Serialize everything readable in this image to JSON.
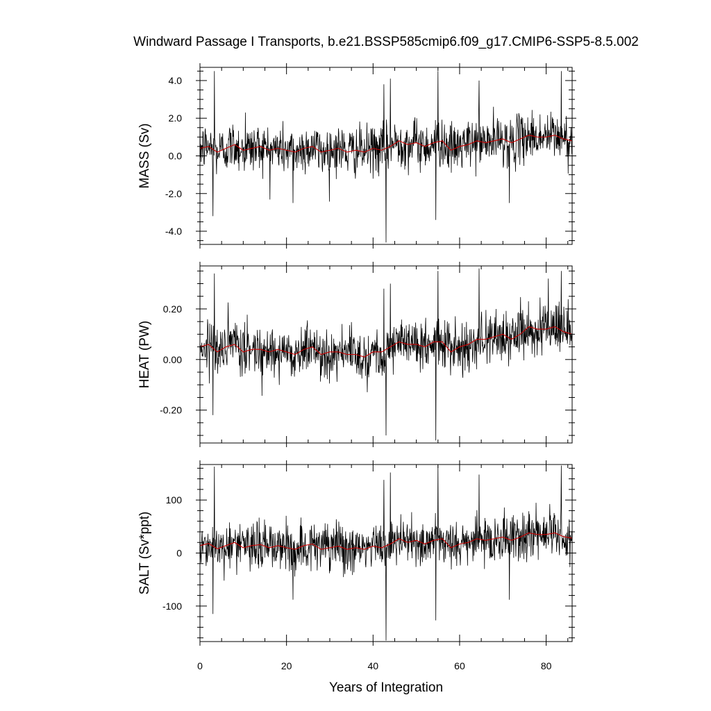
{
  "chart_data": {
    "type": "line",
    "title": "Windward Passage I Transports, b.e21.BSSP585cmip6.f09_g17.CMIP6-SSP5-8.5.002",
    "xlabel": "Years of Integration",
    "xlim": [
      0,
      86
    ],
    "x_ticks": [
      0,
      20,
      40,
      60,
      80
    ],
    "x_tick_labels": [
      "0",
      "20",
      "40",
      "60",
      "80"
    ],
    "x_monthly_start": 0,
    "x_monthly_step": 0.08333,
    "line_colors": {
      "raw": "#000000",
      "smoothed": "#cc0000"
    },
    "panels": [
      {
        "ylabel": "MASS (Sv)",
        "ylim": [
          -4.7,
          4.7
        ],
        "y_ticks": [
          -4,
          -2,
          0,
          2,
          4
        ],
        "y_tick_labels": [
          "-4.0",
          "-2.0",
          "0.0",
          "2.0",
          "4.0"
        ],
        "y_minor_step": 0.5,
        "series": [
          {
            "kind": "raw",
            "mean": 0.3,
            "std": 0.65
          },
          {
            "kind": "smoothed",
            "values": [
              [
                0,
                0.4
              ],
              [
                2,
                0.5
              ],
              [
                4,
                0.2
              ],
              [
                6,
                0.4
              ],
              [
                8,
                0.6
              ],
              [
                10,
                0.3
              ],
              [
                12,
                0.4
              ],
              [
                14,
                0.5
              ],
              [
                16,
                0.3
              ],
              [
                18,
                0.4
              ],
              [
                20,
                0.3
              ],
              [
                22,
                0.2
              ],
              [
                24,
                0.4
              ],
              [
                26,
                0.5
              ],
              [
                28,
                0.2
              ],
              [
                30,
                0.3
              ],
              [
                32,
                0.4
              ],
              [
                34,
                0.2
              ],
              [
                36,
                0.3
              ],
              [
                38,
                0.2
              ],
              [
                40,
                0.4
              ],
              [
                42,
                0.3
              ],
              [
                44,
                0.5
              ],
              [
                46,
                0.8
              ],
              [
                48,
                0.6
              ],
              [
                50,
                0.7
              ],
              [
                52,
                0.5
              ],
              [
                54,
                0.7
              ],
              [
                56,
                0.8
              ],
              [
                58,
                0.3
              ],
              [
                60,
                0.5
              ],
              [
                62,
                0.6
              ],
              [
                64,
                0.8
              ],
              [
                66,
                0.7
              ],
              [
                68,
                0.8
              ],
              [
                70,
                0.9
              ],
              [
                72,
                0.7
              ],
              [
                74,
                0.9
              ],
              [
                76,
                1.1
              ],
              [
                78,
                1.0
              ],
              [
                80,
                1.0
              ],
              [
                82,
                1.1
              ],
              [
                84,
                0.9
              ],
              [
                86,
                0.8
              ]
            ]
          }
        ],
        "spikes": [
          [
            3.3,
            4.5
          ],
          [
            3.0,
            -3.2
          ],
          [
            43.0,
            -4.6
          ],
          [
            44.0,
            4.1
          ],
          [
            55.0,
            4.5
          ],
          [
            54.5,
            -3.4
          ],
          [
            64.5,
            4.0
          ],
          [
            83.5,
            4.5
          ],
          [
            21.5,
            -2.5
          ],
          [
            71.5,
            -2.5
          ],
          [
            10.5,
            2.3
          ],
          [
            42.5,
            3.8
          ]
        ]
      },
      {
        "ylabel": "HEAT (PW)",
        "ylim": [
          -0.33,
          0.37
        ],
        "y_ticks": [
          -0.2,
          0,
          0.2
        ],
        "y_tick_labels": [
          "-0.20",
          "0.00",
          "0.20"
        ],
        "y_minor_step": 0.05,
        "series": [
          {
            "kind": "raw",
            "mean": 0.04,
            "std": 0.05
          },
          {
            "kind": "smoothed",
            "values": [
              [
                0,
                0.05
              ],
              [
                2,
                0.06
              ],
              [
                4,
                0.03
              ],
              [
                6,
                0.05
              ],
              [
                8,
                0.06
              ],
              [
                10,
                0.03
              ],
              [
                12,
                0.04
              ],
              [
                14,
                0.04
              ],
              [
                16,
                0.03
              ],
              [
                18,
                0.04
              ],
              [
                20,
                0.03
              ],
              [
                22,
                0.02
              ],
              [
                24,
                0.04
              ],
              [
                26,
                0.05
              ],
              [
                28,
                0.02
              ],
              [
                30,
                0.03
              ],
              [
                32,
                0.03
              ],
              [
                34,
                0.02
              ],
              [
                36,
                0.02
              ],
              [
                38,
                0.01
              ],
              [
                40,
                0.03
              ],
              [
                42,
                0.03
              ],
              [
                44,
                0.05
              ],
              [
                46,
                0.07
              ],
              [
                48,
                0.06
              ],
              [
                50,
                0.06
              ],
              [
                52,
                0.05
              ],
              [
                54,
                0.07
              ],
              [
                56,
                0.07
              ],
              [
                58,
                0.03
              ],
              [
                60,
                0.05
              ],
              [
                62,
                0.06
              ],
              [
                64,
                0.08
              ],
              [
                66,
                0.08
              ],
              [
                68,
                0.09
              ],
              [
                70,
                0.1
              ],
              [
                72,
                0.08
              ],
              [
                74,
                0.1
              ],
              [
                76,
                0.13
              ],
              [
                78,
                0.12
              ],
              [
                80,
                0.12
              ],
              [
                82,
                0.13
              ],
              [
                84,
                0.11
              ],
              [
                86,
                0.1
              ]
            ]
          }
        ],
        "spikes": [
          [
            3.3,
            0.34
          ],
          [
            3.0,
            -0.22
          ],
          [
            43.0,
            -0.3
          ],
          [
            44.0,
            0.3
          ],
          [
            55.0,
            0.35
          ],
          [
            54.5,
            -0.32
          ],
          [
            64.5,
            0.36
          ],
          [
            83.5,
            0.35
          ],
          [
            42.5,
            0.28
          ],
          [
            80.5,
            0.32
          ]
        ]
      },
      {
        "ylabel": "SALT (Sv*ppt)",
        "ylim": [
          -167,
          167
        ],
        "y_ticks": [
          -100,
          0,
          100
        ],
        "y_tick_labels": [
          "-100",
          "0",
          "100"
        ],
        "y_minor_step": 20,
        "series": [
          {
            "kind": "raw",
            "mean": 10,
            "std": 23
          },
          {
            "kind": "smoothed",
            "values": [
              [
                0,
                14
              ],
              [
                2,
                18
              ],
              [
                4,
                8
              ],
              [
                6,
                14
              ],
              [
                8,
                20
              ],
              [
                10,
                10
              ],
              [
                12,
                14
              ],
              [
                14,
                16
              ],
              [
                16,
                10
              ],
              [
                18,
                14
              ],
              [
                20,
                10
              ],
              [
                22,
                7
              ],
              [
                24,
                14
              ],
              [
                26,
                17
              ],
              [
                28,
                7
              ],
              [
                30,
                10
              ],
              [
                32,
                13
              ],
              [
                34,
                7
              ],
              [
                36,
                10
              ],
              [
                38,
                7
              ],
              [
                40,
                13
              ],
              [
                42,
                10
              ],
              [
                44,
                17
              ],
              [
                46,
                27
              ],
              [
                48,
                20
              ],
              [
                50,
                24
              ],
              [
                52,
                17
              ],
              [
                54,
                24
              ],
              [
                56,
                27
              ],
              [
                58,
                10
              ],
              [
                60,
                17
              ],
              [
                62,
                20
              ],
              [
                64,
                27
              ],
              [
                66,
                24
              ],
              [
                68,
                27
              ],
              [
                70,
                30
              ],
              [
                72,
                24
              ],
              [
                74,
                30
              ],
              [
                76,
                38
              ],
              [
                78,
                35
              ],
              [
                80,
                35
              ],
              [
                82,
                38
              ],
              [
                84,
                31
              ],
              [
                86,
                28
              ]
            ]
          }
        ],
        "spikes": [
          [
            3.3,
            163
          ],
          [
            3.0,
            -115
          ],
          [
            43.0,
            -165
          ],
          [
            44.0,
            152
          ],
          [
            55.0,
            165
          ],
          [
            54.5,
            -127
          ],
          [
            64.5,
            148
          ],
          [
            83.5,
            165
          ],
          [
            42.5,
            138
          ],
          [
            21.5,
            -88
          ],
          [
            71.5,
            -88
          ]
        ]
      }
    ]
  }
}
